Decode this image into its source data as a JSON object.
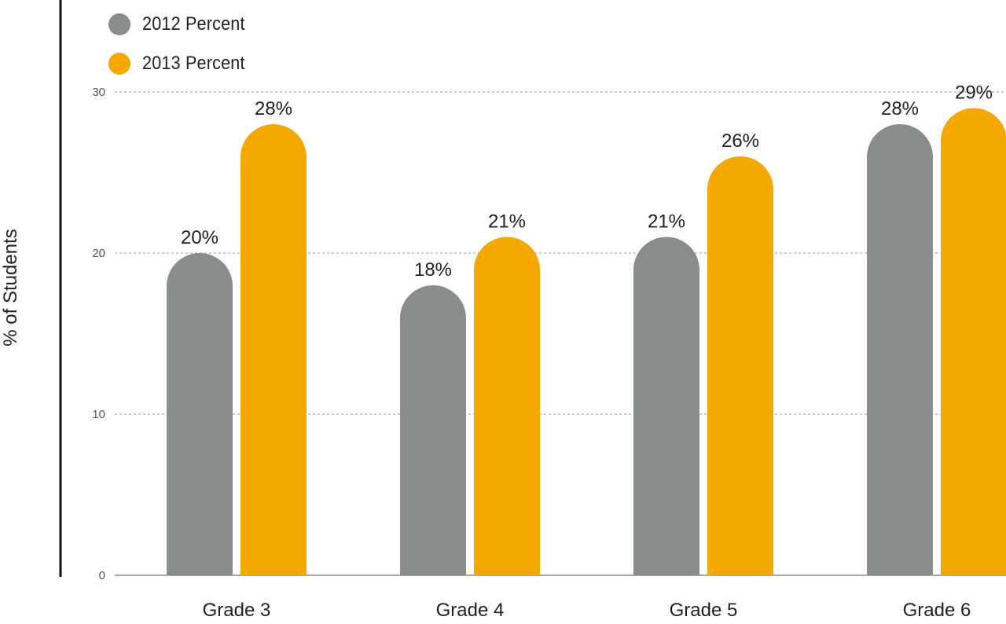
{
  "chart_data": {
    "type": "bar",
    "title": "",
    "xlabel": "",
    "ylabel": "% of Students",
    "categories": [
      "Grade 3",
      "Grade 4",
      "Grade 5",
      "Grade 6"
    ],
    "ylim": [
      0,
      30
    ],
    "yticks": [
      0,
      10,
      20,
      30
    ],
    "ytick_labels": [
      "0",
      "10",
      "20",
      "30"
    ],
    "grid": true,
    "legend_position": "top-left",
    "series": [
      {
        "name": "2012 Percent",
        "color": "#898C8C",
        "values": [
          20,
          18,
          21,
          28
        ],
        "data_labels": [
          "20%",
          "18%",
          "21%",
          "28%"
        ]
      },
      {
        "name": "2013 Percent",
        "color": "#F5A800",
        "values": [
          28,
          21,
          26,
          29
        ],
        "data_labels": [
          "28%",
          "21%",
          "26%",
          "29%"
        ]
      }
    ]
  }
}
